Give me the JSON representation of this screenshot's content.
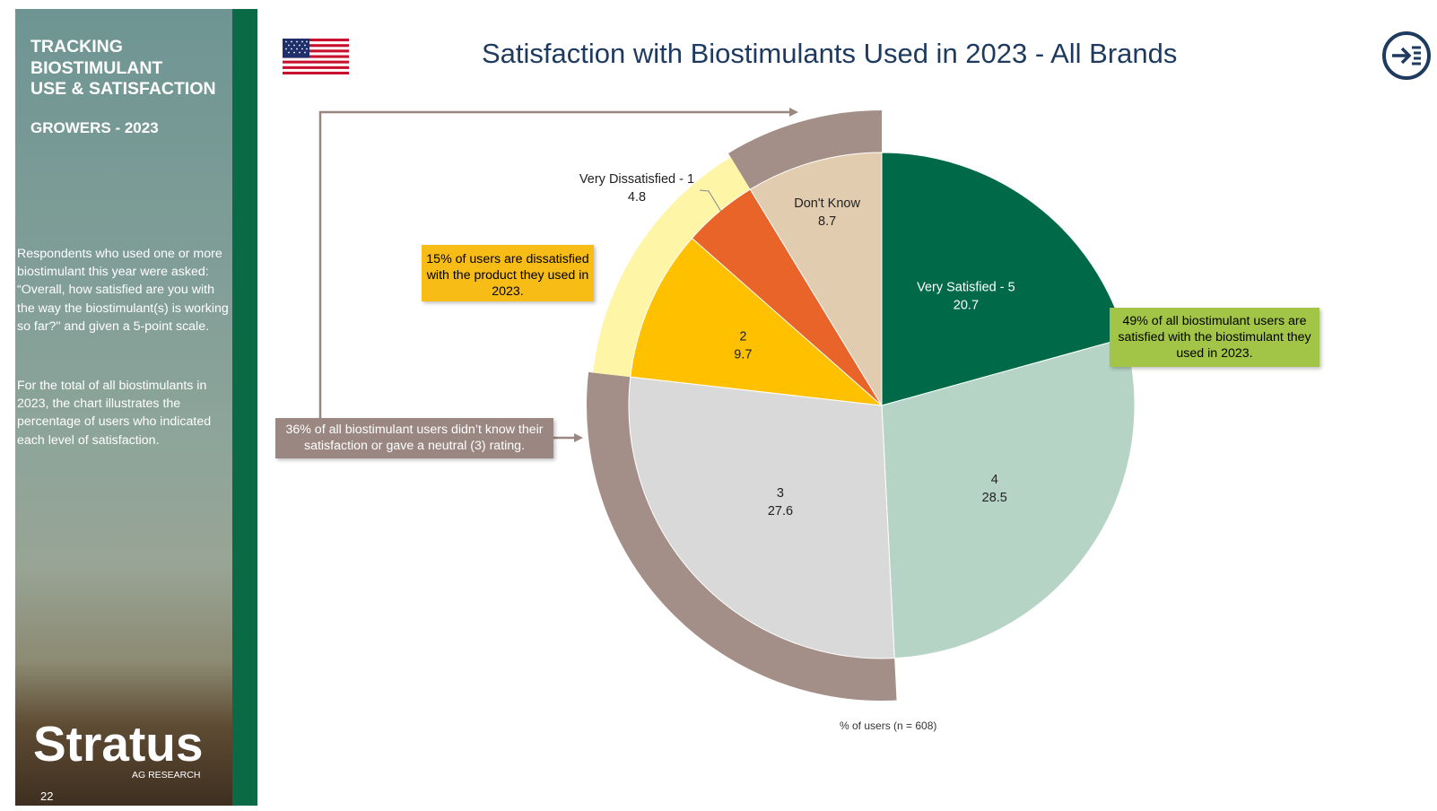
{
  "sidebar": {
    "title_lines": [
      "TRACKING",
      "BIOSTIMULANT",
      "USE & SATISFACTION"
    ],
    "subtitle": "GROWERS - 2023",
    "paragraph1": "Respondents who used one or more biostimulant this year were asked: “Overall, how satisfied are you with the way the biostimulant(s) is working so far?\" and given a 5-point scale.",
    "paragraph2": "For the total of all biostimulants in 2023, the chart illustrates the percentage of users who indicated each level of satisfaction.",
    "logo_word": "Stratus",
    "logo_sub": "AG RESEARCH",
    "page_number": "22"
  },
  "header": {
    "flag_icon": "us-flag-icon",
    "nav_icon": "arrow-to-list-icon"
  },
  "callouts": {
    "dissatisfied": "15% of users are dissatisfied with the product they used in 2023.",
    "satisfied": "49% of all biostimulant users are satisfied with the biostimulant they used in 2023.",
    "neutral": "36% of all biostimulant users didn’t know their satisfaction or gave a neutral (3) rating."
  },
  "colors": {
    "very_satisfied": "#006a48",
    "four": "#b5d4c6",
    "three": "#d9d9d9",
    "two": "#ffc000",
    "very_dissatisfied": "#e96428",
    "dont_know": "#e2ccb0",
    "neutral_ring": "#a48f88",
    "dissatisfied_wedge": "#fff5a6",
    "brand_green": "#0a6a45",
    "title_navy": "#1e3a5f"
  },
  "chart_data": {
    "type": "pie",
    "title": "Satisfaction with Biostimulants Used in 2023 - All Brands",
    "note": "% of users (n = 608)",
    "slices": [
      {
        "label": "Very Satisfied - 5",
        "value": 20.7
      },
      {
        "label": "4",
        "value": 28.5
      },
      {
        "label": "3",
        "value": 27.6
      },
      {
        "label": "2",
        "value": 9.7
      },
      {
        "label": "Very Dissatisfied - 1",
        "value": 4.8
      },
      {
        "label": "Don't Know",
        "value": 8.7
      }
    ]
  }
}
